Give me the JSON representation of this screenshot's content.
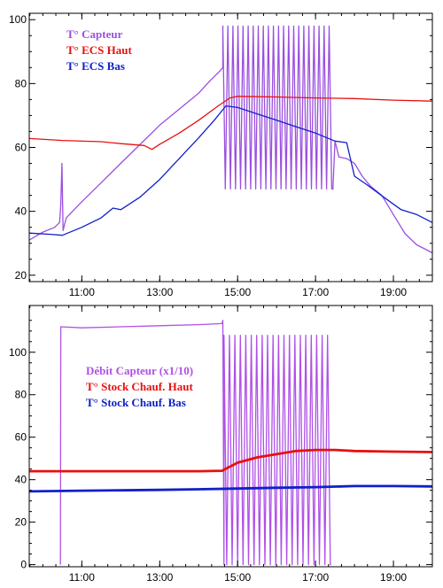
{
  "chart_data": [
    {
      "type": "line",
      "title": "",
      "xlabel": "",
      "ylabel": "",
      "x_unit": "hour",
      "xlim": [
        9.65,
        20.0
      ],
      "ylim": [
        18,
        102
      ],
      "x_ticks": [
        {
          "value": 11,
          "label": "11:00"
        },
        {
          "value": 13,
          "label": "13:00"
        },
        {
          "value": 15,
          "label": "15:00"
        },
        {
          "value": 17,
          "label": "17:00"
        },
        {
          "value": 19,
          "label": "19:00"
        }
      ],
      "y_ticks": [
        {
          "value": 20,
          "label": "20"
        },
        {
          "value": 40,
          "label": "40"
        },
        {
          "value": 60,
          "label": "60"
        },
        {
          "value": 80,
          "label": "80"
        },
        {
          "value": 100,
          "label": "100"
        }
      ],
      "grid": false,
      "legend_position": "top-left",
      "series": [
        {
          "name": "T° Capteur",
          "color": "#9b4fe0",
          "points": [
            [
              9.65,
              31
            ],
            [
              10.0,
              33.5
            ],
            [
              10.3,
              35
            ],
            [
              10.43,
              36.5
            ],
            [
              10.46,
              42
            ],
            [
              10.49,
              55
            ],
            [
              10.52,
              34
            ],
            [
              10.6,
              38
            ],
            [
              11.0,
              43
            ],
            [
              11.5,
              49
            ],
            [
              12.0,
              55
            ],
            [
              12.5,
              61
            ],
            [
              13.0,
              67
            ],
            [
              13.5,
              72
            ],
            [
              14.0,
              77
            ],
            [
              14.3,
              81
            ],
            [
              14.55,
              84
            ],
            [
              14.62,
              85
            ]
          ],
          "osc_start": 14.62,
          "osc_end": 17.45,
          "osc_period": 0.13,
          "osc_high": 98,
          "osc_low": 47,
          "tail_points": [
            [
              17.45,
              48
            ],
            [
              17.5,
              62
            ],
            [
              17.6,
              57
            ],
            [
              17.8,
              56.5
            ],
            [
              18.0,
              55
            ],
            [
              18.2,
              51
            ],
            [
              18.4,
              48
            ],
            [
              18.7,
              45
            ],
            [
              19.0,
              39
            ],
            [
              19.3,
              33
            ],
            [
              19.6,
              29.5
            ],
            [
              20.0,
              27
            ]
          ]
        },
        {
          "name": "T° ECS Haut",
          "color": "#e81010",
          "points": [
            [
              9.65,
              62.8
            ],
            [
              10.5,
              62.2
            ],
            [
              11.5,
              61.8
            ],
            [
              12.0,
              61.2
            ],
            [
              12.6,
              60.6
            ],
            [
              12.8,
              59.4
            ],
            [
              13.0,
              61
            ],
            [
              13.5,
              64.5
            ],
            [
              14.0,
              68.5
            ],
            [
              14.5,
              73
            ],
            [
              14.8,
              75.5
            ],
            [
              15.0,
              76
            ],
            [
              16.0,
              75.8
            ],
            [
              17.0,
              75.5
            ],
            [
              18.0,
              75.3
            ],
            [
              19.0,
              74.8
            ],
            [
              20.0,
              74.5
            ]
          ]
        },
        {
          "name": "T° ECS Bas",
          "color": "#1020c8",
          "points": [
            [
              9.65,
              33.2
            ],
            [
              10.2,
              32.8
            ],
            [
              10.5,
              32.5
            ],
            [
              11.0,
              35
            ],
            [
              11.5,
              38
            ],
            [
              11.8,
              41
            ],
            [
              12.0,
              40.5
            ],
            [
              12.5,
              44.5
            ],
            [
              13.0,
              50
            ],
            [
              13.5,
              56.5
            ],
            [
              14.0,
              63
            ],
            [
              14.4,
              68.5
            ],
            [
              14.7,
              73
            ],
            [
              15.0,
              72.5
            ],
            [
              15.5,
              70.5
            ],
            [
              16.0,
              68.5
            ],
            [
              16.5,
              66.5
            ],
            [
              17.0,
              64.5
            ],
            [
              17.5,
              62
            ],
            [
              17.8,
              61.5
            ],
            [
              18.0,
              51
            ],
            [
              18.3,
              48.5
            ],
            [
              18.8,
              44
            ],
            [
              19.2,
              40.5
            ],
            [
              19.6,
              39
            ],
            [
              20.0,
              36.5
            ]
          ]
        }
      ]
    },
    {
      "type": "line",
      "title": "",
      "xlabel": "",
      "ylabel": "",
      "x_unit": "hour",
      "xlim": [
        9.65,
        20.0
      ],
      "ylim": [
        -1,
        122
      ],
      "x_ticks": [
        {
          "value": 11,
          "label": "11:00"
        },
        {
          "value": 13,
          "label": "13:00"
        },
        {
          "value": 15,
          "label": "15:00"
        },
        {
          "value": 17,
          "label": "17:00"
        },
        {
          "value": 19,
          "label": "19:00"
        }
      ],
      "y_ticks": [
        {
          "value": 0,
          "label": "0"
        },
        {
          "value": 20,
          "label": "20"
        },
        {
          "value": 40,
          "label": "40"
        },
        {
          "value": 60,
          "label": "60"
        },
        {
          "value": 80,
          "label": "80"
        },
        {
          "value": 100,
          "label": "100"
        }
      ],
      "grid": false,
      "legend_position": "middle-left",
      "series": [
        {
          "name": "Débit Capteur (x1/10)",
          "color": "#b050e8",
          "points": [
            [
              10.45,
              0
            ],
            [
              10.46,
              112
            ],
            [
              11.0,
              111.5
            ],
            [
              12.0,
              112
            ],
            [
              13.0,
              112.5
            ],
            [
              14.0,
              113
            ],
            [
              14.6,
              113.5
            ],
            [
              14.62,
              115
            ],
            [
              14.65,
              0
            ]
          ],
          "osc_start": 14.65,
          "osc_end": 17.4,
          "osc_period": 0.14,
          "osc_high": 108,
          "osc_low": 0
        },
        {
          "name": "T° Stock Chauf. Haut",
          "color": "#e81010",
          "points": [
            [
              9.65,
              44
            ],
            [
              11.0,
              44
            ],
            [
              12.0,
              44
            ],
            [
              13.0,
              44
            ],
            [
              14.0,
              44
            ],
            [
              14.6,
              44.2
            ],
            [
              15.0,
              48
            ],
            [
              15.5,
              50.5
            ],
            [
              16.0,
              52
            ],
            [
              16.5,
              53.5
            ],
            [
              17.0,
              54
            ],
            [
              17.5,
              54
            ],
            [
              18.0,
              53.5
            ],
            [
              19.0,
              53.2
            ],
            [
              20.0,
              53
            ]
          ]
        },
        {
          "name": "T° Stock Chauf. Bas",
          "color": "#1020c8",
          "points": [
            [
              9.65,
              34.5
            ],
            [
              11.0,
              34.8
            ],
            [
              12.0,
              35
            ],
            [
              13.0,
              35.2
            ],
            [
              14.0,
              35.5
            ],
            [
              15.0,
              35.8
            ],
            [
              16.0,
              36.2
            ],
            [
              17.0,
              36.5
            ],
            [
              18.0,
              37
            ],
            [
              19.0,
              37
            ],
            [
              20.0,
              36.8
            ]
          ]
        }
      ]
    }
  ]
}
